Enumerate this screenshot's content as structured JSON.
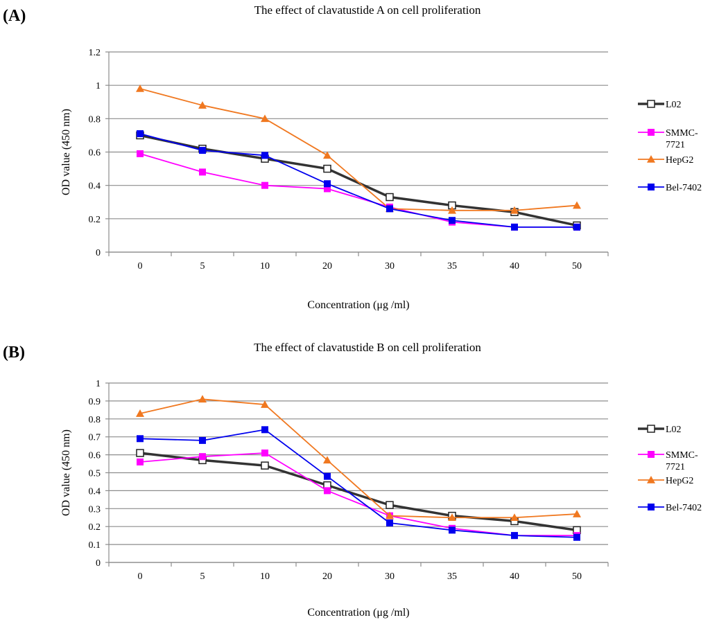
{
  "chart_data": [
    {
      "type": "line",
      "panel_label": "(A)",
      "title": "The effect of  clavatustide A on cell proliferation",
      "xlabel": "Concentration (μg /ml)",
      "ylabel": "OD value (450 nm)",
      "ylim": [
        0,
        1.2
      ],
      "yticks": [
        "0",
        "0.2",
        "0.4",
        "0.6",
        "0.8",
        "1",
        "1.2"
      ],
      "grid": true,
      "legend_position": "right",
      "categories": [
        "0",
        "5",
        "10",
        "20",
        "30",
        "35",
        "40",
        "50"
      ],
      "series": [
        {
          "name": "L02",
          "legend_lines": [
            "L02"
          ],
          "color": "#333333",
          "marker": "square-open",
          "values": [
            0.7,
            0.62,
            0.56,
            0.5,
            0.33,
            0.28,
            0.24,
            0.16
          ]
        },
        {
          "name": "SMMC-7721",
          "legend_lines": [
            "SMMC-",
            "7721"
          ],
          "color": "#ff00ff",
          "marker": "square",
          "values": [
            0.59,
            0.48,
            0.4,
            0.38,
            0.27,
            0.18,
            0.15,
            0.15
          ]
        },
        {
          "name": "HepG2",
          "legend_lines": [
            "HepG2"
          ],
          "color": "#f07820",
          "marker": "triangle",
          "values": [
            0.98,
            0.88,
            0.8,
            0.58,
            0.26,
            0.25,
            0.25,
            0.28
          ]
        },
        {
          "name": "Bel-7402",
          "legend_lines": [
            "Bel-7402"
          ],
          "color": "#0000ee",
          "marker": "square",
          "values": [
            0.71,
            0.61,
            0.58,
            0.41,
            0.26,
            0.19,
            0.15,
            0.15
          ]
        }
      ]
    },
    {
      "type": "line",
      "panel_label": "(B)",
      "title": "The effect of clavatustide B on cell proliferation",
      "xlabel": "Concentration (μg /ml)",
      "ylabel": "OD value (450 nm)",
      "ylim": [
        0,
        1
      ],
      "yticks": [
        "0",
        "0.1",
        "0.2",
        "0.3",
        "0.4",
        "0.5",
        "0.6",
        "0.7",
        "0.8",
        "0.9",
        "1"
      ],
      "grid": true,
      "legend_position": "right",
      "categories": [
        "0",
        "5",
        "10",
        "20",
        "30",
        "35",
        "40",
        "50"
      ],
      "series": [
        {
          "name": "L02",
          "legend_lines": [
            "L02"
          ],
          "color": "#333333",
          "marker": "square-open",
          "values": [
            0.61,
            0.57,
            0.54,
            0.43,
            0.32,
            0.26,
            0.23,
            0.18
          ]
        },
        {
          "name": "SMMC-7721",
          "legend_lines": [
            "SMMC-",
            "7721"
          ],
          "color": "#ff00ff",
          "marker": "square",
          "values": [
            0.56,
            0.59,
            0.61,
            0.4,
            0.26,
            0.19,
            0.15,
            0.15
          ]
        },
        {
          "name": "HepG2",
          "legend_lines": [
            "HepG2"
          ],
          "color": "#f07820",
          "marker": "triangle",
          "values": [
            0.83,
            0.91,
            0.88,
            0.57,
            0.26,
            0.25,
            0.25,
            0.27
          ]
        },
        {
          "name": "Bel-7402",
          "legend_lines": [
            "Bel-7402"
          ],
          "color": "#0000ee",
          "marker": "square",
          "values": [
            0.69,
            0.68,
            0.74,
            0.48,
            0.22,
            0.18,
            0.15,
            0.14
          ]
        }
      ]
    }
  ]
}
